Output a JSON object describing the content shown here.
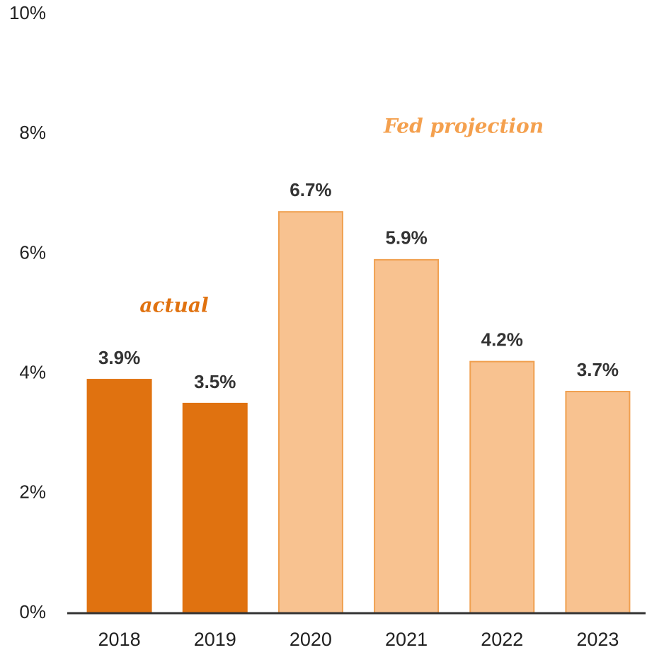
{
  "chart_data": {
    "type": "bar",
    "categories": [
      "2018",
      "2019",
      "2020",
      "2021",
      "2022",
      "2023"
    ],
    "values": [
      3.9,
      3.5,
      6.7,
      5.9,
      4.2,
      3.7
    ],
    "value_labels": [
      "3.9%",
      "3.5%",
      "6.7%",
      "5.9%",
      "4.2%",
      "3.7%"
    ],
    "colors": [
      "#e07210",
      "#e07210",
      "#f8c290",
      "#f8c290",
      "#f8c290",
      "#f8c290"
    ],
    "edge_colors": [
      "#e07210",
      "#e07210",
      "#f0a050",
      "#f0a050",
      "#f0a050",
      "#f0a050"
    ],
    "ylim": [
      0,
      10
    ],
    "yticks": [
      {
        "value": 0,
        "label": "0%"
      },
      {
        "value": 2,
        "label": "2%"
      },
      {
        "value": 4,
        "label": "4%"
      },
      {
        "value": 6,
        "label": "6%"
      },
      {
        "value": 8,
        "label": "8%"
      },
      {
        "value": 10,
        "label": "10%"
      }
    ],
    "grid": false,
    "annotations": [
      {
        "text": "actual",
        "color": "#e07210"
      },
      {
        "text": "Fed projection",
        "color": "#f4a04e"
      }
    ]
  }
}
